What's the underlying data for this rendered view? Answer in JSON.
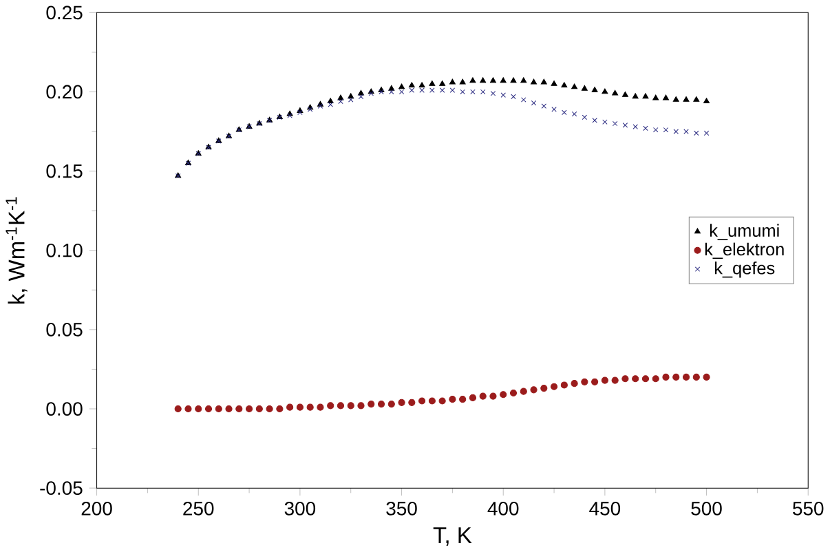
{
  "chart_data": {
    "type": "scatter",
    "xlabel": "T, K",
    "ylabel": "k, Wm$^{-1}$K$^{-1}$",
    "xlim": [
      200,
      550
    ],
    "xticks": [
      200,
      250,
      300,
      350,
      400,
      450,
      500,
      550
    ],
    "ylim": [
      -0.05,
      0.25
    ],
    "yticks": [
      {
        "value": -0.05,
        "label": "-0.05"
      },
      {
        "value": 0,
        "label": "0.00"
      },
      {
        "value": 0.05,
        "label": "0.05"
      },
      {
        "value": 0.1,
        "label": "0.10"
      },
      {
        "value": 0.15,
        "label": "0.15"
      },
      {
        "value": 0.2,
        "label": "0.20"
      },
      {
        "value": 0.25,
        "label": "0.25"
      }
    ],
    "grid": false,
    "legend": "right",
    "x": [
      240,
      245,
      250,
      255,
      260,
      265,
      270,
      275,
      280,
      285,
      290,
      295,
      300,
      305,
      310,
      315,
      320,
      325,
      330,
      335,
      340,
      345,
      350,
      355,
      360,
      365,
      370,
      375,
      380,
      385,
      390,
      395,
      400,
      405,
      410,
      415,
      420,
      425,
      430,
      435,
      440,
      445,
      450,
      455,
      460,
      465,
      470,
      475,
      480,
      485,
      490,
      495,
      500
    ],
    "series": [
      {
        "name": "k_umumi",
        "color": "#000000",
        "marker": "triangle",
        "values": [
          0.147,
          0.155,
          0.161,
          0.165,
          0.169,
          0.172,
          0.176,
          0.178,
          0.18,
          0.182,
          0.184,
          0.186,
          0.188,
          0.19,
          0.192,
          0.194,
          0.196,
          0.197,
          0.199,
          0.2,
          0.201,
          0.202,
          0.203,
          0.204,
          0.204,
          0.205,
          0.205,
          0.206,
          0.206,
          0.207,
          0.207,
          0.207,
          0.207,
          0.207,
          0.207,
          0.206,
          0.206,
          0.205,
          0.204,
          0.203,
          0.202,
          0.201,
          0.2,
          0.199,
          0.198,
          0.197,
          0.197,
          0.196,
          0.196,
          0.195,
          0.195,
          0.195,
          0.194
        ]
      },
      {
        "name": "k_elektron",
        "color": "#9b1c1c",
        "marker": "circle",
        "values": [
          0.0,
          0.0,
          0.0,
          0.0,
          0.0,
          0.0,
          0.0,
          0.0,
          0.0,
          0.0,
          0.0,
          0.001,
          0.001,
          0.001,
          0.001,
          0.002,
          0.002,
          0.002,
          0.002,
          0.003,
          0.003,
          0.003,
          0.004,
          0.004,
          0.005,
          0.005,
          0.005,
          0.006,
          0.006,
          0.007,
          0.008,
          0.008,
          0.009,
          0.01,
          0.011,
          0.012,
          0.013,
          0.014,
          0.015,
          0.016,
          0.017,
          0.017,
          0.018,
          0.018,
          0.019,
          0.019,
          0.019,
          0.019,
          0.02,
          0.02,
          0.02,
          0.02,
          0.02
        ]
      },
      {
        "name": "k_qefes",
        "color": "#2a2a80",
        "marker": "cross",
        "values": [
          0.147,
          0.155,
          0.161,
          0.165,
          0.169,
          0.172,
          0.176,
          0.178,
          0.18,
          0.182,
          0.184,
          0.185,
          0.187,
          0.189,
          0.191,
          0.192,
          0.194,
          0.195,
          0.197,
          0.199,
          0.2,
          0.2,
          0.2,
          0.201,
          0.201,
          0.201,
          0.201,
          0.201,
          0.2,
          0.2,
          0.2,
          0.199,
          0.198,
          0.197,
          0.195,
          0.193,
          0.191,
          0.189,
          0.187,
          0.186,
          0.184,
          0.182,
          0.181,
          0.18,
          0.179,
          0.178,
          0.177,
          0.176,
          0.176,
          0.175,
          0.175,
          0.174,
          0.174
        ]
      }
    ]
  }
}
